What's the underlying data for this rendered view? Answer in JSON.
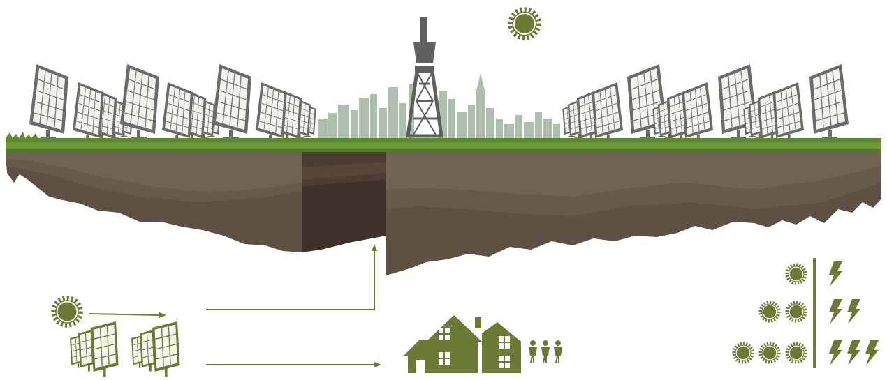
{
  "colors": {
    "accent_green": "#6b7a35",
    "grass": "#6c9a3a",
    "grass_dark": "#4f7a2a",
    "soil_top": "#6f6454",
    "soil_mid": "#5e5144",
    "soil_deep": "#4a3e35",
    "soil_cut": "#3f3129",
    "skyline": "#aebfae",
    "tower": "#5d605c",
    "panel_frame": "#6a6c68",
    "panel_cell": "#f2f3ef",
    "arrow": "#6b7a35"
  },
  "icons": {
    "sun": "sun-icon",
    "lightning": "lightning-bolt-icon",
    "house": "house-icon",
    "people": "people-icon",
    "tower": "oil-derrick-tower-icon",
    "solar_panel": "solar-panel-icon"
  },
  "energy_scale": {
    "rows": [
      {
        "suns": 1,
        "bolts": 1
      },
      {
        "suns": 2,
        "bolts": 2
      },
      {
        "suns": 3,
        "bolts": 3
      }
    ]
  },
  "people_count": 3
}
